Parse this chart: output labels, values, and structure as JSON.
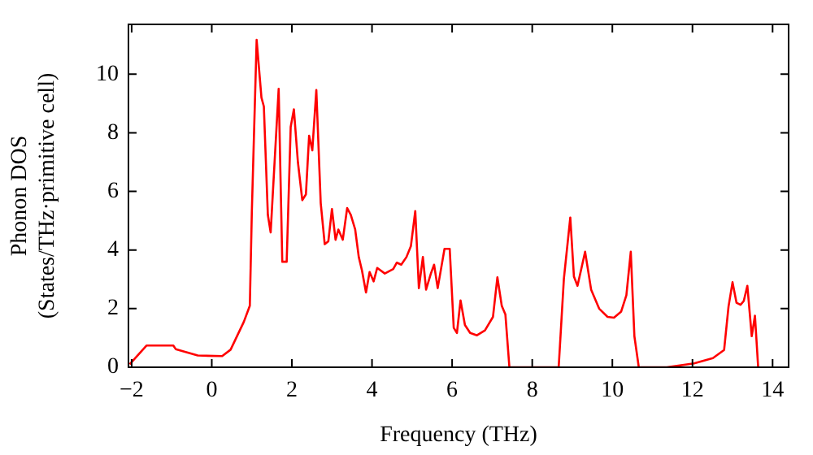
{
  "chart_data": {
    "type": "line",
    "xlabel": "Frequency (THz)",
    "ylabel": "Phonon DOS\n(States/THz·primitive cell)",
    "xlim": [
      -2.08,
      14.4
    ],
    "ylim": [
      0,
      11.7
    ],
    "xticks": [
      -2,
      0,
      2,
      4,
      6,
      8,
      10,
      12,
      14
    ],
    "yticks": [
      0,
      2,
      4,
      6,
      8,
      10
    ],
    "grid": false,
    "legend": false,
    "marker": "none",
    "line_style": "solid",
    "series": [
      {
        "color": "#ff0000",
        "x": [
          -2.05,
          -1.63,
          -0.96,
          -0.9,
          -0.35,
          0.26,
          0.47,
          0.8,
          0.95,
          1.0,
          1.12,
          1.24,
          1.3,
          1.4,
          1.47,
          1.67,
          1.76,
          1.87,
          1.97,
          2.05,
          2.15,
          2.26,
          2.35,
          2.43,
          2.51,
          2.61,
          2.72,
          2.82,
          2.91,
          3.0,
          3.09,
          3.16,
          3.27,
          3.38,
          3.47,
          3.58,
          3.67,
          3.75,
          3.85,
          3.94,
          4.04,
          4.13,
          4.32,
          4.53,
          4.62,
          4.73,
          4.86,
          4.97,
          5.08,
          5.17,
          5.27,
          5.35,
          5.47,
          5.55,
          5.64,
          5.81,
          5.94,
          6.04,
          6.12,
          6.21,
          6.32,
          6.45,
          6.62,
          6.82,
          7.02,
          7.13,
          7.24,
          7.33,
          7.43,
          8.66,
          8.79,
          8.95,
          9.04,
          9.13,
          9.23,
          9.32,
          9.47,
          9.67,
          9.88,
          10.04,
          10.22,
          10.35,
          10.46,
          10.55,
          10.66,
          11.36,
          12.04,
          12.51,
          12.79,
          12.9,
          13.0,
          13.1,
          13.2,
          13.28,
          13.37,
          13.48,
          13.56,
          13.64
        ],
        "values": [
          0.1,
          0.74,
          0.74,
          0.62,
          0.4,
          0.38,
          0.6,
          1.55,
          2.1,
          5.3,
          11.17,
          9.2,
          8.9,
          5.2,
          4.6,
          9.5,
          3.6,
          3.6,
          8.2,
          8.8,
          7.0,
          5.7,
          5.9,
          7.9,
          7.4,
          9.46,
          5.6,
          4.2,
          4.3,
          5.4,
          4.35,
          4.7,
          4.35,
          5.43,
          5.2,
          4.7,
          3.76,
          3.3,
          2.55,
          3.25,
          2.93,
          3.39,
          3.2,
          3.35,
          3.57,
          3.5,
          3.76,
          4.13,
          5.33,
          2.7,
          3.76,
          2.65,
          3.2,
          3.5,
          2.7,
          4.04,
          4.04,
          1.35,
          1.17,
          2.28,
          1.44,
          1.17,
          1.09,
          1.26,
          1.72,
          3.07,
          2.09,
          1.8,
          0,
          0,
          3.02,
          5.11,
          3.1,
          2.78,
          3.39,
          3.94,
          2.65,
          2.0,
          1.72,
          1.69,
          1.9,
          2.46,
          3.94,
          1.06,
          0,
          0,
          0.13,
          0.31,
          0.59,
          2.07,
          2.9,
          2.2,
          2.13,
          2.26,
          2.78,
          1.06,
          1.76,
          0
        ]
      }
    ]
  }
}
